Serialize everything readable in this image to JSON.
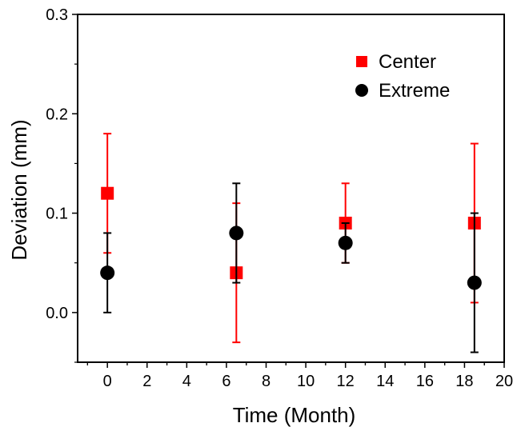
{
  "chart_data": {
    "type": "scatter",
    "title": "",
    "xlabel": "Time (Month)",
    "ylabel": "Deviation (mm)",
    "xlim": [
      -1.5,
      20
    ],
    "ylim": [
      -0.05,
      0.3
    ],
    "xticks": [
      0,
      2,
      4,
      6,
      8,
      10,
      12,
      14,
      16,
      18,
      20
    ],
    "xtick_labels": [
      "0",
      "2",
      "4",
      "6",
      "8",
      "10",
      "12",
      "14",
      "16",
      "18",
      "20"
    ],
    "yticks": [
      0.0,
      0.1,
      0.2,
      0.3
    ],
    "ytick_labels": [
      "0.0",
      "0.1",
      "0.2",
      "0.3"
    ],
    "grid": false,
    "legend_position": "top-right",
    "series": [
      {
        "name": "Center",
        "color": "#ff0000",
        "marker": "square",
        "points": [
          {
            "x": 0,
            "y": 0.12,
            "err_low": 0.06,
            "err_high": 0.18
          },
          {
            "x": 6.5,
            "y": 0.04,
            "err_low": -0.03,
            "err_high": 0.11
          },
          {
            "x": 12,
            "y": 0.09,
            "err_low": 0.05,
            "err_high": 0.13
          },
          {
            "x": 18.5,
            "y": 0.09,
            "err_low": 0.01,
            "err_high": 0.17
          }
        ]
      },
      {
        "name": "Extreme",
        "color": "#000000",
        "marker": "circle",
        "points": [
          {
            "x": 0,
            "y": 0.04,
            "err_low": 0.0,
            "err_high": 0.08
          },
          {
            "x": 6.5,
            "y": 0.08,
            "err_low": 0.03,
            "err_high": 0.13
          },
          {
            "x": 12,
            "y": 0.07,
            "err_low": 0.05,
            "err_high": 0.09
          },
          {
            "x": 18.5,
            "y": 0.03,
            "err_low": -0.04,
            "err_high": 0.1
          }
        ]
      }
    ]
  }
}
